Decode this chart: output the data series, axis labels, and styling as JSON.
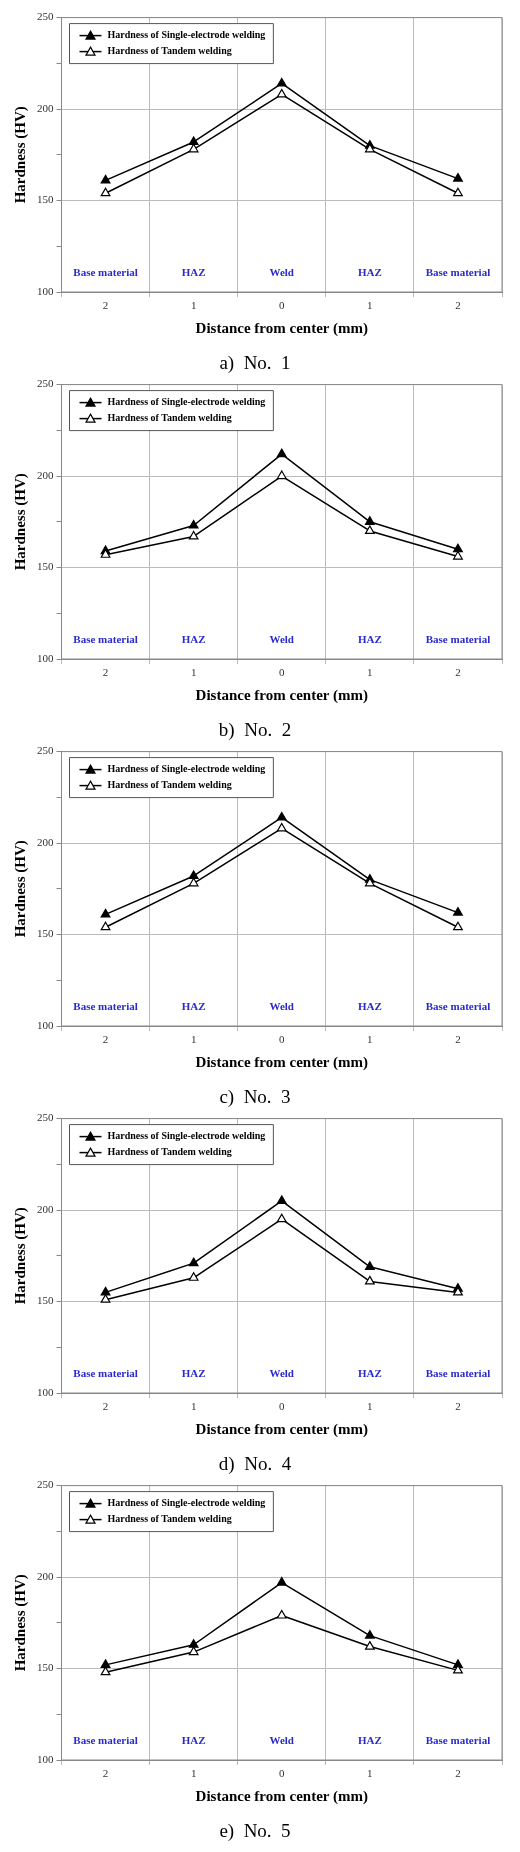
{
  "chart_data": [
    {
      "type": "line",
      "title": "a)  No.  1",
      "xlabel": "Distance from center (mm)",
      "ylabel": "Hardness (HV)",
      "categories": [
        "2",
        "1",
        "0",
        "1",
        "2"
      ],
      "series": [
        {
          "name": "Hardness of Single-electrode welding",
          "color": "#000000",
          "values": [
            161,
            182,
            214,
            180,
            162
          ]
        },
        {
          "name": "Hardness of Tandem welding",
          "color": "#000000",
          "values": [
            154,
            178,
            208,
            178,
            154
          ]
        }
      ],
      "annotations": [
        "Base material",
        "HAZ",
        "Weld",
        "HAZ",
        "Base material"
      ],
      "ylim": [
        100,
        250
      ],
      "yticks": [
        100,
        {
          "value": 125,
          "label": null
        },
        150,
        {
          "value": 175,
          "label": null
        },
        200,
        {
          "value": 225,
          "label": null
        },
        250
      ],
      "grid": true,
      "legend": "top left",
      "marker": "triangle",
      "line_style": "solid"
    },
    {
      "type": "line",
      "title": "b)  No.  2",
      "xlabel": "Distance from center (mm)",
      "ylabel": "Hardness (HV)",
      "categories": [
        "2",
        "1",
        "0",
        "1",
        "2"
      ],
      "series": [
        {
          "name": "Hardness of Single-electrode welding",
          "color": "#000000",
          "values": [
            159,
            173,
            212,
            175,
            160
          ]
        },
        {
          "name": "Hardness of Tandem welding",
          "color": "#000000",
          "values": [
            157,
            167,
            200,
            170,
            156
          ]
        }
      ],
      "annotations": [
        "Base material",
        "HAZ",
        "Weld",
        "HAZ",
        "Base material"
      ],
      "ylim": [
        100,
        250
      ],
      "yticks": [
        100,
        {
          "value": 125,
          "label": null
        },
        150,
        {
          "value": 175,
          "label": null
        },
        200,
        {
          "value": 225,
          "label": null
        },
        250
      ],
      "grid": true,
      "legend": "top left",
      "marker": "triangle",
      "line_style": "solid"
    },
    {
      "type": "line",
      "title": "c)  No.  3",
      "xlabel": "Distance from center (mm)",
      "ylabel": "Hardness (HV)",
      "categories": [
        "2",
        "1",
        "0",
        "1",
        "2"
      ],
      "series": [
        {
          "name": "Hardness of Single-electrode welding",
          "color": "#000000",
          "values": [
            161,
            182,
            214,
            180,
            162
          ]
        },
        {
          "name": "Hardness of Tandem welding",
          "color": "#000000",
          "values": [
            154,
            178,
            208,
            178,
            154
          ]
        }
      ],
      "annotations": [
        "Base material",
        "HAZ",
        "Weld",
        "HAZ",
        "Base material"
      ],
      "ylim": [
        100,
        250
      ],
      "yticks": [
        100,
        {
          "value": 125,
          "label": null
        },
        150,
        {
          "value": 175,
          "label": null
        },
        200,
        {
          "value": 225,
          "label": null
        },
        250
      ],
      "grid": true,
      "legend": "top left",
      "marker": "triangle",
      "line_style": "solid"
    },
    {
      "type": "line",
      "title": "d)  No.  4",
      "xlabel": "Distance from center (mm)",
      "ylabel": "Hardness (HV)",
      "categories": [
        "2",
        "1",
        "0",
        "1",
        "2"
      ],
      "series": [
        {
          "name": "Hardness of Single-electrode welding",
          "color": "#000000",
          "values": [
            155,
            171,
            205,
            169,
            157
          ]
        },
        {
          "name": "Hardness of Tandem welding",
          "color": "#000000",
          "values": [
            151,
            163,
            195,
            161,
            155
          ]
        }
      ],
      "annotations": [
        "Base material",
        "HAZ",
        "Weld",
        "HAZ",
        "Base material"
      ],
      "ylim": [
        100,
        250
      ],
      "yticks": [
        100,
        {
          "value": 125,
          "label": null
        },
        150,
        {
          "value": 175,
          "label": null
        },
        200,
        {
          "value": 225,
          "label": null
        },
        250
      ],
      "grid": true,
      "legend": "top left",
      "marker": "triangle",
      "line_style": "solid"
    },
    {
      "type": "line",
      "title": "e)  No.  5",
      "xlabel": "Distance from center (mm)",
      "ylabel": "Hardness (HV)",
      "categories": [
        "2",
        "1",
        "0",
        "1",
        "2"
      ],
      "series": [
        {
          "name": "Hardness of Single-electrode welding",
          "color": "#000000",
          "values": [
            152,
            163,
            197,
            168,
            152
          ]
        },
        {
          "name": "Hardness of Tandem welding",
          "color": "#000000",
          "values": [
            148,
            159,
            179,
            162,
            149
          ]
        }
      ],
      "annotations": [
        "Base material",
        "HAZ",
        "Weld",
        "HAZ",
        "Base material"
      ],
      "ylim": [
        100,
        250
      ],
      "yticks": [
        100,
        {
          "value": 125,
          "label": null
        },
        150,
        {
          "value": 175,
          "label": null
        },
        200,
        {
          "value": 225,
          "label": null
        },
        250
      ],
      "grid": true,
      "legend": "top left",
      "marker": "triangle",
      "line_style": "solid"
    }
  ]
}
